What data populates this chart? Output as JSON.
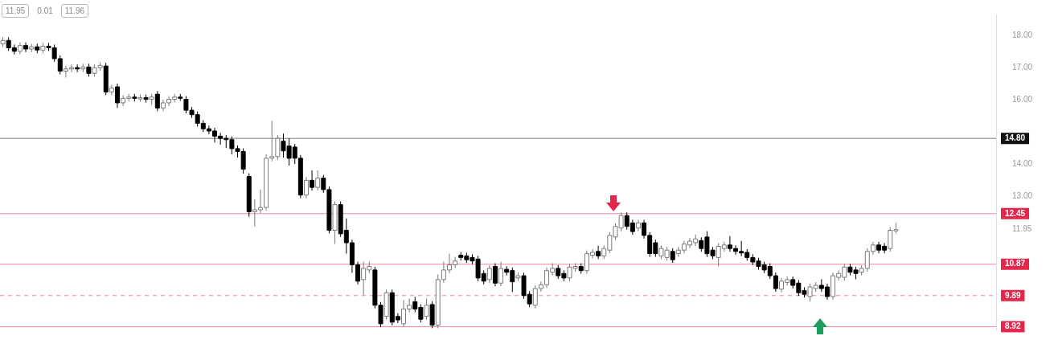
{
  "chart_data": {
    "type": "candlestick",
    "categories": [
      null,
      null,
      null,
      null,
      null,
      null,
      null,
      null,
      null,
      null,
      null,
      null,
      null,
      null,
      null,
      null,
      null,
      null,
      null,
      null,
      null,
      null,
      null,
      null,
      null,
      null,
      null,
      null,
      null,
      null,
      null,
      null,
      null,
      null,
      null,
      null,
      null,
      null,
      null,
      null,
      null,
      null,
      null,
      null,
      null,
      null,
      null,
      null,
      null,
      null,
      null,
      null,
      null,
      null,
      null,
      null,
      null,
      null,
      null,
      null,
      null,
      null,
      null,
      null,
      null,
      null,
      null,
      null,
      null,
      null,
      null,
      null,
      null,
      null,
      null,
      null,
      null,
      null,
      null,
      null,
      null,
      null,
      null,
      null,
      null,
      null,
      null,
      null,
      null,
      null,
      null,
      null,
      null,
      null,
      null,
      null,
      null,
      null,
      null,
      null,
      null,
      null,
      null,
      null,
      null,
      null,
      null,
      null,
      null,
      null,
      null,
      null,
      null,
      null,
      null,
      null,
      null,
      null,
      null,
      null,
      null,
      null,
      null,
      null,
      null,
      null,
      null,
      null,
      null,
      null,
      null,
      null,
      null,
      null,
      null,
      null,
      null,
      null,
      null,
      null,
      null,
      null,
      null,
      null,
      null,
      null,
      null,
      null,
      null,
      null,
      null,
      null,
      null,
      null,
      null,
      null,
      null,
      null,
      null,
      null,
      null,
      null,
      null,
      null,
      null,
      null,
      null,
      null,
      null,
      null,
      null,
      null,
      null,
      null
    ],
    "ohlc": [
      [
        17.75,
        17.96,
        17.65,
        17.86
      ],
      [
        17.86,
        17.96,
        17.53,
        17.63
      ],
      [
        17.63,
        17.73,
        17.42,
        17.52
      ],
      [
        17.52,
        17.8,
        17.42,
        17.7
      ],
      [
        17.7,
        17.8,
        17.49,
        17.59
      ],
      [
        17.59,
        17.76,
        17.49,
        17.66
      ],
      [
        17.66,
        17.76,
        17.46,
        17.56
      ],
      [
        17.56,
        17.78,
        17.46,
        17.68
      ],
      [
        17.68,
        17.78,
        17.53,
        17.63
      ],
      [
        17.63,
        17.73,
        17.19,
        17.29
      ],
      [
        17.29,
        17.39,
        16.8,
        16.9
      ],
      [
        16.9,
        17.07,
        16.7,
        16.97
      ],
      [
        16.97,
        17.11,
        16.87,
        17.01
      ],
      [
        17.01,
        17.11,
        16.87,
        16.97
      ],
      [
        16.97,
        17.13,
        16.87,
        17.03
      ],
      [
        17.03,
        17.13,
        16.73,
        16.83
      ],
      [
        16.83,
        17.11,
        16.73,
        17.01
      ],
      [
        17.01,
        17.18,
        16.91,
        17.08
      ],
      [
        17.06,
        17.16,
        16.15,
        16.25
      ],
      [
        16.25,
        16.47,
        16.15,
        16.37
      ],
      [
        16.41,
        16.51,
        15.75,
        15.91
      ],
      [
        15.91,
        16.15,
        15.81,
        16.05
      ],
      [
        16.05,
        16.19,
        15.95,
        16.09
      ],
      [
        16.09,
        16.19,
        15.95,
        16.05
      ],
      [
        16.05,
        16.17,
        15.95,
        16.07
      ],
      [
        16.07,
        16.17,
        15.92,
        16.02
      ],
      [
        16.02,
        16.19,
        15.85,
        16.09
      ],
      [
        16.18,
        16.28,
        15.65,
        15.75
      ],
      [
        15.75,
        16.01,
        15.65,
        15.91
      ],
      [
        15.91,
        16.12,
        15.81,
        16.02
      ],
      [
        16.02,
        16.19,
        15.92,
        16.09
      ],
      [
        16.09,
        16.19,
        15.97,
        16.07
      ],
      [
        16.02,
        16.12,
        15.58,
        15.68
      ],
      [
        15.68,
        15.78,
        15.44,
        15.54
      ],
      [
        15.54,
        15.64,
        15.17,
        15.27
      ],
      [
        15.27,
        15.37,
        15.0,
        15.1
      ],
      [
        15.1,
        15.2,
        14.93,
        15.03
      ],
      [
        15.03,
        15.13,
        14.67,
        14.87
      ],
      [
        14.87,
        14.97,
        14.6,
        14.8
      ],
      [
        14.8,
        14.9,
        14.5,
        14.76
      ],
      [
        14.76,
        14.86,
        14.3,
        14.48
      ],
      [
        14.48,
        14.58,
        14.2,
        14.39
      ],
      [
        14.39,
        14.49,
        13.7,
        13.84
      ],
      [
        13.61,
        13.71,
        12.35,
        12.51
      ],
      [
        12.51,
        12.9,
        12.05,
        12.57
      ],
      [
        12.57,
        13.2,
        12.47,
        12.64
      ],
      [
        12.64,
        14.3,
        12.54,
        14.18
      ],
      [
        14.18,
        15.35,
        14.08,
        14.23
      ],
      [
        14.23,
        14.9,
        14.13,
        14.8
      ],
      [
        14.71,
        14.95,
        14.2,
        14.41
      ],
      [
        14.56,
        14.8,
        13.95,
        14.18
      ],
      [
        14.53,
        14.63,
        14.0,
        14.18
      ],
      [
        14.18,
        14.28,
        12.93,
        13.03
      ],
      [
        13.03,
        13.59,
        12.93,
        13.49
      ],
      [
        13.49,
        13.8,
        13.17,
        13.27
      ],
      [
        13.27,
        13.8,
        13.17,
        13.56
      ],
      [
        13.56,
        13.66,
        13.1,
        13.2
      ],
      [
        13.2,
        13.3,
        11.83,
        11.93
      ],
      [
        11.93,
        12.83,
        11.5,
        12.73
      ],
      [
        12.73,
        12.83,
        11.72,
        11.82
      ],
      [
        11.93,
        12.3,
        11.2,
        11.54
      ],
      [
        11.54,
        11.64,
        10.6,
        10.85
      ],
      [
        10.85,
        10.95,
        10.24,
        10.34
      ],
      [
        10.39,
        10.95,
        9.9,
        10.74
      ],
      [
        10.69,
        10.95,
        10.59,
        10.8
      ],
      [
        10.69,
        10.79,
        9.49,
        9.59
      ],
      [
        9.59,
        9.69,
        8.91,
        9.01
      ],
      [
        9.24,
        10.08,
        9.14,
        9.98
      ],
      [
        9.98,
        10.08,
        8.96,
        9.06
      ],
      [
        9.24,
        9.34,
        9.03,
        9.13
      ],
      [
        9.01,
        9.75,
        8.91,
        9.47
      ],
      [
        9.47,
        9.8,
        9.37,
        9.59
      ],
      [
        9.7,
        9.85,
        9.37,
        9.47
      ],
      [
        9.52,
        9.62,
        9.05,
        9.15
      ],
      [
        9.24,
        9.8,
        9.14,
        9.59
      ],
      [
        9.61,
        9.71,
        8.87,
        8.97
      ],
      [
        8.97,
        10.55,
        8.87,
        10.39
      ],
      [
        10.39,
        10.95,
        10.29,
        10.69
      ],
      [
        10.69,
        11.2,
        10.59,
        10.85
      ],
      [
        10.85,
        11.1,
        10.75,
        10.97
      ],
      [
        11.15,
        11.25,
        10.98,
        11.08
      ],
      [
        11.13,
        11.23,
        10.91,
        11.01
      ],
      [
        11.08,
        11.18,
        10.87,
        10.97
      ],
      [
        11.03,
        11.13,
        10.34,
        10.44
      ],
      [
        10.58,
        10.68,
        10.24,
        10.34
      ],
      [
        10.39,
        10.84,
        10.29,
        10.74
      ],
      [
        10.8,
        10.9,
        10.18,
        10.28
      ],
      [
        10.28,
        10.95,
        10.18,
        10.74
      ],
      [
        10.71,
        10.81,
        10.52,
        10.62
      ],
      [
        10.67,
        10.77,
        10.0,
        10.32
      ],
      [
        10.44,
        10.61,
        10.34,
        10.51
      ],
      [
        10.51,
        10.61,
        9.79,
        9.89
      ],
      [
        9.93,
        10.03,
        9.53,
        9.63
      ],
      [
        9.59,
        10.21,
        9.49,
        10.11
      ],
      [
        10.11,
        10.33,
        10.01,
        10.23
      ],
      [
        10.23,
        10.77,
        10.13,
        10.67
      ],
      [
        10.62,
        10.9,
        10.52,
        10.74
      ],
      [
        10.74,
        10.84,
        10.41,
        10.51
      ],
      [
        10.58,
        10.68,
        10.34,
        10.44
      ],
      [
        10.44,
        10.88,
        10.34,
        10.78
      ],
      [
        10.74,
        10.9,
        10.64,
        10.8
      ],
      [
        10.8,
        10.9,
        10.57,
        10.67
      ],
      [
        10.67,
        11.3,
        10.57,
        11.2
      ],
      [
        11.15,
        11.34,
        11.05,
        11.24
      ],
      [
        11.27,
        11.45,
        11.03,
        11.13
      ],
      [
        11.13,
        11.46,
        11.03,
        11.36
      ],
      [
        11.31,
        11.87,
        11.21,
        11.77
      ],
      [
        11.72,
        12.15,
        11.62,
        12.05
      ],
      [
        12.0,
        12.49,
        11.9,
        12.39
      ],
      [
        12.39,
        12.49,
        11.95,
        12.05
      ],
      [
        12.16,
        12.26,
        11.79,
        11.89
      ],
      [
        12.0,
        12.26,
        11.9,
        12.16
      ],
      [
        12.16,
        12.26,
        11.67,
        11.77
      ],
      [
        11.77,
        11.87,
        11.1,
        11.2
      ],
      [
        11.54,
        11.64,
        11.1,
        11.2
      ],
      [
        11.13,
        11.46,
        11.03,
        11.36
      ],
      [
        11.08,
        11.41,
        10.98,
        11.31
      ],
      [
        11.27,
        11.37,
        10.91,
        11.01
      ],
      [
        11.2,
        11.41,
        11.1,
        11.31
      ],
      [
        11.31,
        11.6,
        11.21,
        11.5
      ],
      [
        11.47,
        11.69,
        11.37,
        11.59
      ],
      [
        11.54,
        11.8,
        11.44,
        11.66
      ],
      [
        11.61,
        11.71,
        11.26,
        11.36
      ],
      [
        11.72,
        11.9,
        11.1,
        11.2
      ],
      [
        11.31,
        11.41,
        11.03,
        11.13
      ],
      [
        11.08,
        11.53,
        10.8,
        11.43
      ],
      [
        11.36,
        11.57,
        11.26,
        11.47
      ],
      [
        11.47,
        11.75,
        11.26,
        11.36
      ],
      [
        11.36,
        11.46,
        11.17,
        11.27
      ],
      [
        11.27,
        11.6,
        11.12,
        11.22
      ],
      [
        11.24,
        11.34,
        10.98,
        11.08
      ],
      [
        11.08,
        11.18,
        10.84,
        10.94
      ],
      [
        10.97,
        11.07,
        10.7,
        10.8
      ],
      [
        10.85,
        10.95,
        10.59,
        10.69
      ],
      [
        10.8,
        10.9,
        10.41,
        10.51
      ],
      [
        10.51,
        10.61,
        10.01,
        10.11
      ],
      [
        10.09,
        10.44,
        9.99,
        10.34
      ],
      [
        10.3,
        10.49,
        10.2,
        10.39
      ],
      [
        10.39,
        10.49,
        10.11,
        10.21
      ],
      [
        10.28,
        10.38,
        9.88,
        9.98
      ],
      [
        10.05,
        10.15,
        9.83,
        9.93
      ],
      [
        9.86,
        10.26,
        9.7,
        10.16
      ],
      [
        10.11,
        10.31,
        10.01,
        10.21
      ],
      [
        10.21,
        10.4,
        10.01,
        10.11
      ],
      [
        10.16,
        10.26,
        9.76,
        9.86
      ],
      [
        9.86,
        10.61,
        9.76,
        10.51
      ],
      [
        10.46,
        10.68,
        10.36,
        10.58
      ],
      [
        10.46,
        10.88,
        10.36,
        10.78
      ],
      [
        10.78,
        10.88,
        10.52,
        10.62
      ],
      [
        10.69,
        10.79,
        10.4,
        10.58
      ],
      [
        10.62,
        10.84,
        10.52,
        10.74
      ],
      [
        10.74,
        11.37,
        10.64,
        11.27
      ],
      [
        11.27,
        11.57,
        11.17,
        11.47
      ],
      [
        11.47,
        11.57,
        11.21,
        11.31
      ],
      [
        11.43,
        11.53,
        11.21,
        11.31
      ],
      [
        11.36,
        12.03,
        11.26,
        11.93
      ],
      [
        11.93,
        12.16,
        11.83,
        11.95
      ],
      null,
      null,
      null,
      null,
      null,
      null,
      null,
      null,
      null,
      null,
      null,
      null,
      null,
      null,
      null,
      null,
      null
    ],
    "ylim": [
      8.83,
      18.67
    ],
    "yticks": [
      {
        "value": 18,
        "label": "18.00"
      },
      {
        "value": 17,
        "label": "17.00"
      },
      {
        "value": 16,
        "label": "16.00"
      },
      {
        "value": 14,
        "label": "14.00"
      },
      {
        "value": 13,
        "label": "13.00"
      },
      11.95
    ],
    "ref_lines": [
      {
        "axis": "y",
        "value": 14.8,
        "label": "14.80",
        "color": "#111111"
      },
      {
        "axis": "y",
        "value": 12.45,
        "label": "12.45",
        "color": "#e8254a"
      },
      {
        "axis": "y",
        "value": 10.87,
        "label": "10.87",
        "color": "#e8254a"
      },
      {
        "axis": "y",
        "value": 9.89,
        "label": "9.89",
        "color": "#e8254a",
        "line_style": "dashed"
      },
      {
        "axis": "y",
        "value": 8.92,
        "label": "8.92",
        "color": "#e8254a"
      }
    ],
    "annotations": [
      "11.95",
      "0.01",
      "11.96"
    ]
  }
}
